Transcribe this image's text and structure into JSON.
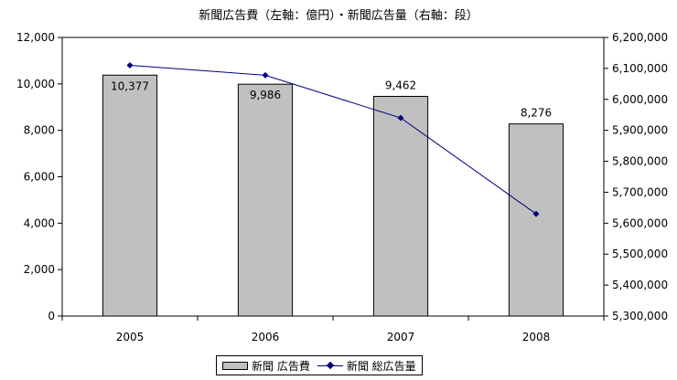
{
  "chart_data": {
    "type": "bar",
    "title": "新聞広告費（左軸：億円）・新聞広告量（右軸：段）",
    "categories": [
      "2005",
      "2006",
      "2007",
      "2008"
    ],
    "series": [
      {
        "name": "新聞 広告費",
        "type": "bar",
        "axis": "left",
        "values": [
          10377,
          9986,
          9462,
          8276
        ],
        "labels": [
          "10,377",
          "9,986",
          "9,462",
          "8,276"
        ],
        "color": "#c0c0c0"
      },
      {
        "name": "新聞 総広告量",
        "type": "line",
        "axis": "right",
        "values": [
          6110000,
          6078000,
          5940000,
          5630000
        ],
        "color": "#000080"
      }
    ],
    "y_left": {
      "range": [
        0,
        12000
      ],
      "ticks": [
        0,
        2000,
        4000,
        6000,
        8000,
        10000,
        12000
      ],
      "tick_labels": [
        "0",
        "2,000",
        "4,000",
        "6,000",
        "8,000",
        "10,000",
        "12,000"
      ]
    },
    "y_right": {
      "range": [
        5300000,
        6200000
      ],
      "ticks": [
        5300000,
        5400000,
        5500000,
        5600000,
        5700000,
        5800000,
        5900000,
        6000000,
        6100000,
        6200000
      ],
      "tick_labels": [
        "5,300,000",
        "5,400,000",
        "5,500,000",
        "5,600,000",
        "5,700,000",
        "5,800,000",
        "5,900,000",
        "6,000,000",
        "6,100,000",
        "6,200,000"
      ]
    },
    "grid": false,
    "legend_position": "bottom"
  }
}
